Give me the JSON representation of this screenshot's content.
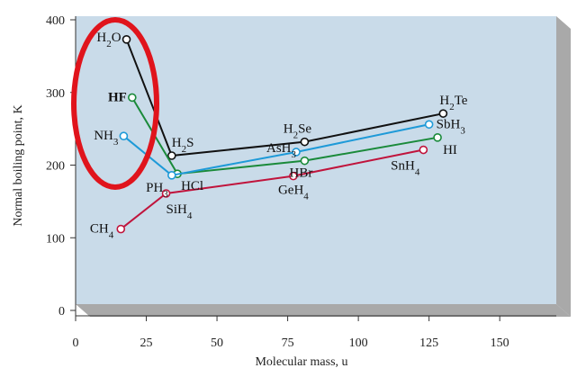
{
  "chart_data": {
    "type": "line",
    "xlabel": "Molecular mass, u",
    "ylabel": "Normal boiling point, K",
    "xlim": [
      0,
      170
    ],
    "ylim": [
      0,
      400
    ],
    "x_ticks": [
      "0",
      "25",
      "50",
      "75",
      "100",
      "125",
      "150"
    ],
    "y_ticks": [
      "0",
      "100",
      "200",
      "300",
      "400"
    ],
    "grid": false,
    "background_color": "#c9dbe9",
    "highlight_color": "#e0141c",
    "series": [
      {
        "color": "#111111",
        "points": [
          {
            "label": "H2O",
            "x": 18,
            "y": 373
          },
          {
            "label": "H2S",
            "x": 34,
            "y": 213
          },
          {
            "label": "H2Se",
            "x": 81,
            "y": 232
          },
          {
            "label": "H2Te",
            "x": 130,
            "y": 271
          }
        ]
      },
      {
        "color": "#1a8a3a",
        "points": [
          {
            "label": "HF",
            "x": 20,
            "y": 293
          },
          {
            "label": "HCl",
            "x": 36,
            "y": 188
          },
          {
            "label": "HBr",
            "x": 81,
            "y": 206
          },
          {
            "label": "HI",
            "x": 128,
            "y": 238
          }
        ]
      },
      {
        "color": "#1e9ad8",
        "points": [
          {
            "label": "NH3",
            "x": 17,
            "y": 240
          },
          {
            "label": "PH3",
            "x": 34,
            "y": 186
          },
          {
            "label": "AsH3",
            "x": 78,
            "y": 218
          },
          {
            "label": "SbH3",
            "x": 125,
            "y": 256
          }
        ]
      },
      {
        "color": "#c0143c",
        "points": [
          {
            "label": "CH4",
            "x": 16,
            "y": 112
          },
          {
            "label": "SiH4",
            "x": 32,
            "y": 161
          },
          {
            "label": "GeH4",
            "x": 77,
            "y": 185
          },
          {
            "label": "SnH4",
            "x": 123,
            "y": 221
          }
        ]
      }
    ]
  }
}
